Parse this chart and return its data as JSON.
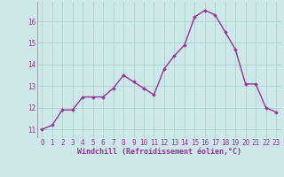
{
  "hours": [
    0,
    1,
    2,
    3,
    4,
    5,
    6,
    7,
    8,
    9,
    10,
    11,
    12,
    13,
    14,
    15,
    16,
    17,
    18,
    19,
    20,
    21,
    22,
    23
  ],
  "values": [
    11.0,
    11.2,
    11.9,
    11.9,
    12.5,
    12.5,
    12.5,
    12.9,
    13.5,
    13.2,
    12.9,
    12.6,
    13.8,
    14.4,
    14.9,
    16.2,
    16.5,
    16.3,
    15.5,
    14.7,
    13.1,
    13.1,
    12.0,
    11.8
  ],
  "line_color": "#993399",
  "marker": "D",
  "marker_size": 1.8,
  "line_width": 1.0,
  "bg_color": "#cce8e8",
  "grid_color": "#aacccc",
  "xlabel": "Windchill (Refroidissement éolien,°C)",
  "xlabel_fontsize": 6.0,
  "tick_label_color": "#993399",
  "tick_fontsize": 5.5,
  "yticks": [
    11,
    12,
    13,
    14,
    15,
    16
  ],
  "ylim": [
    10.6,
    16.9
  ],
  "xlim": [
    -0.5,
    23.5
  ],
  "xticks": [
    0,
    1,
    2,
    3,
    4,
    5,
    6,
    7,
    8,
    9,
    10,
    11,
    12,
    13,
    14,
    15,
    16,
    17,
    18,
    19,
    20,
    21,
    22,
    23
  ]
}
